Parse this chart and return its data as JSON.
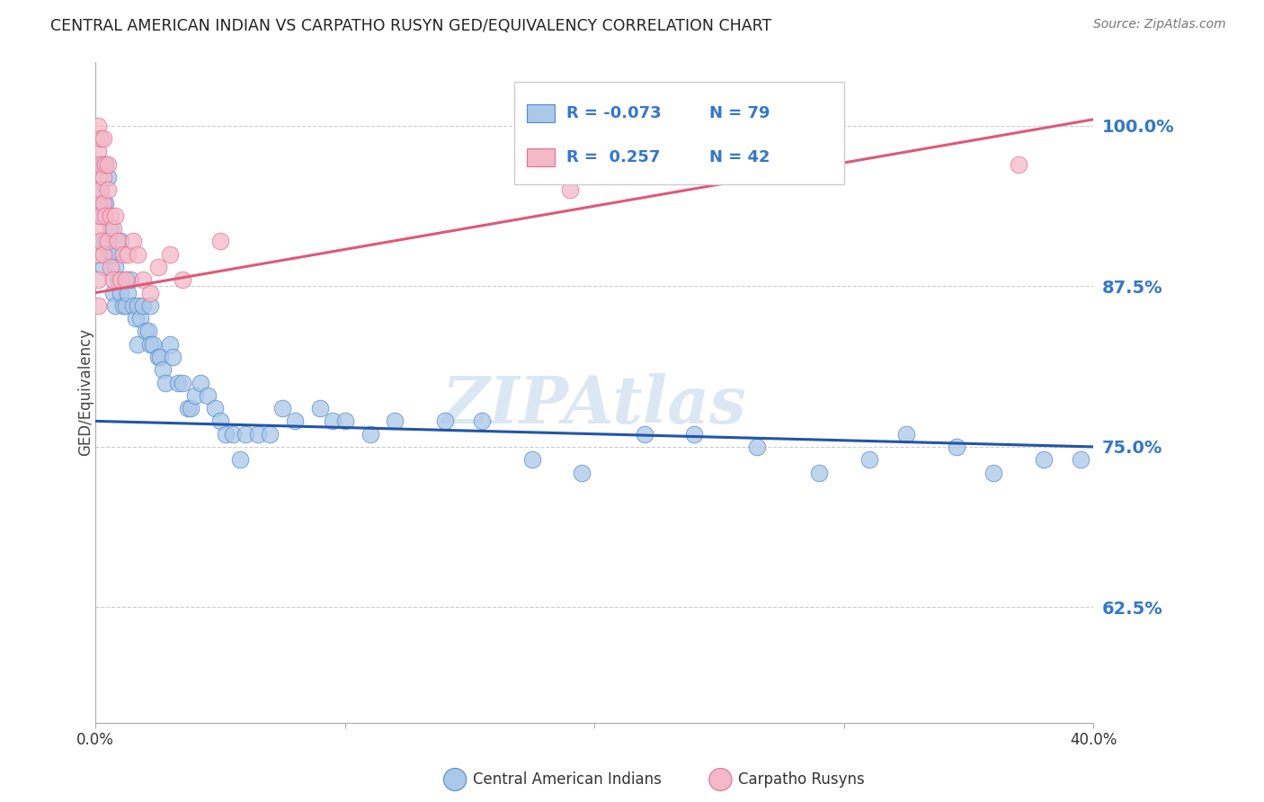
{
  "title": "CENTRAL AMERICAN INDIAN VS CARPATHO RUSYN GED/EQUIVALENCY CORRELATION CHART",
  "source": "Source: ZipAtlas.com",
  "ylabel": "GED/Equivalency",
  "yticks": [
    0.625,
    0.75,
    0.875,
    1.0
  ],
  "ytick_labels": [
    "62.5%",
    "75.0%",
    "87.5%",
    "100.0%"
  ],
  "xlim": [
    0.0,
    0.4
  ],
  "ylim": [
    0.535,
    1.05
  ],
  "blue_R": "-0.073",
  "blue_N": "79",
  "pink_R": "0.257",
  "pink_N": "42",
  "blue_color": "#aac8e8",
  "blue_edge_color": "#5588cc",
  "blue_line_color": "#2255aa",
  "pink_color": "#f5b8c8",
  "pink_edge_color": "#e07090",
  "pink_line_color": "#e05878",
  "blue_label": "Central American Indians",
  "pink_label": "Carpatho Rusyns",
  "watermark": "ZIPAtlas",
  "title_color": "#222222",
  "axis_tick_color": "#3377cc",
  "r_value_color": "#3377cc",
  "legend_text_color": "#222222",
  "blue_trend_x0": 0.0,
  "blue_trend_y0": 0.77,
  "blue_trend_x1": 0.4,
  "blue_trend_y1": 0.75,
  "pink_trend_x0": 0.0,
  "pink_trend_y0": 0.87,
  "pink_trend_x1": 0.4,
  "pink_trend_y1": 1.005,
  "blue_x": [
    0.001,
    0.001,
    0.002,
    0.002,
    0.003,
    0.003,
    0.003,
    0.004,
    0.004,
    0.004,
    0.005,
    0.005,
    0.006,
    0.006,
    0.007,
    0.007,
    0.008,
    0.008,
    0.009,
    0.01,
    0.01,
    0.011,
    0.012,
    0.012,
    0.013,
    0.014,
    0.015,
    0.016,
    0.017,
    0.017,
    0.018,
    0.019,
    0.02,
    0.021,
    0.022,
    0.022,
    0.023,
    0.025,
    0.026,
    0.027,
    0.028,
    0.03,
    0.031,
    0.033,
    0.035,
    0.037,
    0.038,
    0.04,
    0.042,
    0.045,
    0.048,
    0.05,
    0.052,
    0.055,
    0.058,
    0.06,
    0.065,
    0.07,
    0.075,
    0.08,
    0.09,
    0.095,
    0.1,
    0.11,
    0.12,
    0.14,
    0.155,
    0.175,
    0.195,
    0.22,
    0.24,
    0.265,
    0.29,
    0.31,
    0.325,
    0.345,
    0.36,
    0.38,
    0.395
  ],
  "blue_y": [
    0.97,
    0.93,
    0.95,
    0.91,
    0.97,
    0.94,
    0.89,
    0.97,
    0.94,
    0.91,
    0.96,
    0.9,
    0.92,
    0.9,
    0.9,
    0.87,
    0.89,
    0.86,
    0.88,
    0.91,
    0.87,
    0.86,
    0.88,
    0.86,
    0.87,
    0.88,
    0.86,
    0.85,
    0.86,
    0.83,
    0.85,
    0.86,
    0.84,
    0.84,
    0.86,
    0.83,
    0.83,
    0.82,
    0.82,
    0.81,
    0.8,
    0.83,
    0.82,
    0.8,
    0.8,
    0.78,
    0.78,
    0.79,
    0.8,
    0.79,
    0.78,
    0.77,
    0.76,
    0.76,
    0.74,
    0.76,
    0.76,
    0.76,
    0.78,
    0.77,
    0.78,
    0.77,
    0.77,
    0.76,
    0.77,
    0.77,
    0.77,
    0.74,
    0.73,
    0.76,
    0.76,
    0.75,
    0.73,
    0.74,
    0.76,
    0.75,
    0.73,
    0.74,
    0.74
  ],
  "pink_x": [
    0.001,
    0.001,
    0.001,
    0.001,
    0.001,
    0.001,
    0.001,
    0.001,
    0.002,
    0.002,
    0.002,
    0.002,
    0.002,
    0.003,
    0.003,
    0.003,
    0.003,
    0.004,
    0.004,
    0.005,
    0.005,
    0.005,
    0.006,
    0.006,
    0.007,
    0.007,
    0.008,
    0.009,
    0.01,
    0.011,
    0.012,
    0.013,
    0.015,
    0.017,
    0.019,
    0.022,
    0.025,
    0.03,
    0.035,
    0.05,
    0.19,
    0.37
  ],
  "pink_y": [
    1.0,
    0.98,
    0.96,
    0.94,
    0.92,
    0.9,
    0.88,
    0.86,
    0.99,
    0.97,
    0.95,
    0.93,
    0.91,
    0.99,
    0.96,
    0.94,
    0.9,
    0.97,
    0.93,
    0.97,
    0.95,
    0.91,
    0.93,
    0.89,
    0.92,
    0.88,
    0.93,
    0.91,
    0.88,
    0.9,
    0.88,
    0.9,
    0.91,
    0.9,
    0.88,
    0.87,
    0.89,
    0.9,
    0.88,
    0.91,
    0.95,
    0.97
  ]
}
